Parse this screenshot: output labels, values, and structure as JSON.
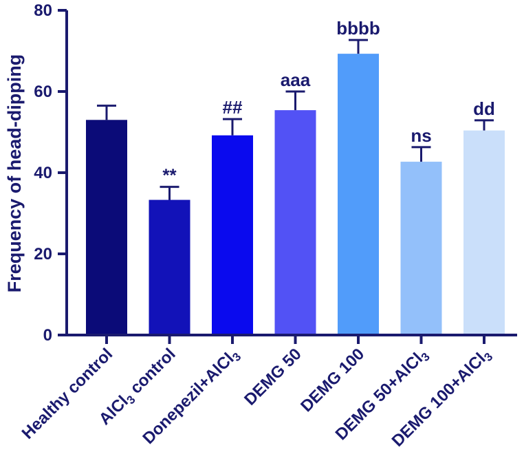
{
  "chart_data": {
    "type": "bar",
    "ylabel": "Frequency of head-dipping",
    "ylim": [
      0,
      80
    ],
    "yticks": [
      0,
      20,
      40,
      60,
      80
    ],
    "grid": false,
    "categories": [
      {
        "main": "Healthy control",
        "sub": ""
      },
      {
        "main": "AlCl",
        "sub": "3",
        "after": " control"
      },
      {
        "main": "Donepezil+AlCl",
        "sub": "3"
      },
      {
        "main": "DEMG 50",
        "sub": ""
      },
      {
        "main": "DEMG 100",
        "sub": ""
      },
      {
        "main": "DEMG 50+AlCl",
        "sub": "3"
      },
      {
        "main": "DEMG 100+AlCl",
        "sub": "3"
      }
    ],
    "values": [
      53,
      33.3,
      49.2,
      55.4,
      69.3,
      42.7,
      50.4
    ],
    "errors": [
      3.5,
      3.2,
      4.0,
      4.6,
      3.4,
      3.6,
      2.5
    ],
    "annotations": [
      "",
      "**",
      "##",
      "aaa",
      "bbbb",
      "ns",
      "dd"
    ],
    "colors": [
      "#0b0b78",
      "#1212b8",
      "#0a0aee",
      "#5252f5",
      "#519cfa",
      "#93c0fa",
      "#cadffa"
    ]
  }
}
